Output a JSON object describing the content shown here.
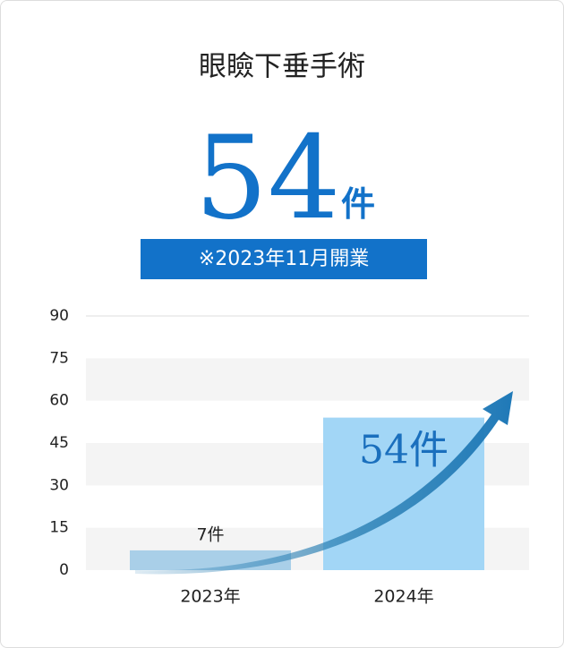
{
  "chart_data": {
    "type": "bar",
    "title": "眼瞼下垂手術",
    "headline_value": 54,
    "headline_unit": "件",
    "note": "※2023年11月開業",
    "categories": [
      "2023年",
      "2024年"
    ],
    "values": [
      7,
      54
    ],
    "value_labels": [
      "7件",
      "54件"
    ],
    "colors": [
      "#a9cfe8",
      "#a2d6f6"
    ],
    "ylim": [
      0,
      90
    ],
    "yticks": [
      0,
      15,
      30,
      45,
      60,
      75,
      90
    ],
    "grid": true
  }
}
